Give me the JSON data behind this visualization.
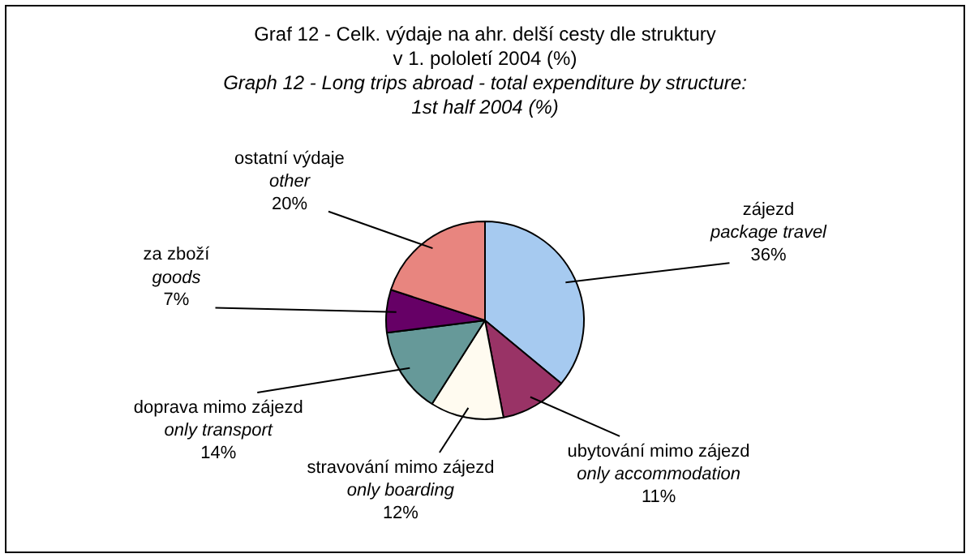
{
  "chart_data": {
    "type": "pie",
    "title": "Graf 12 - Celk. výdaje na ahr. delší cesty dle struktury\nv 1. pololetí 2004 (%)",
    "subtitle": "Graph 12 - Long trips abroad - total expenditure by structure:\n1st half 2004 (%)",
    "categories": [
      "zájezd\npackage travel",
      "ubytování mimo zájezd\nonly accommodation",
      "stravování mimo zájezd\nonly boarding",
      "doprava mimo zájezd\nonly transport",
      "za zboží\ngoods",
      "ostatní výdaje\nother"
    ],
    "values": [
      36,
      11,
      12,
      14,
      7,
      20
    ],
    "colors": [
      "#a6caf0",
      "#993366",
      "#fffbf0",
      "#669999",
      "#660066",
      "#e8857f"
    ],
    "value_labels": [
      "36%",
      "11%",
      "12%",
      "14%",
      "7%",
      "20%"
    ],
    "legend": false
  }
}
